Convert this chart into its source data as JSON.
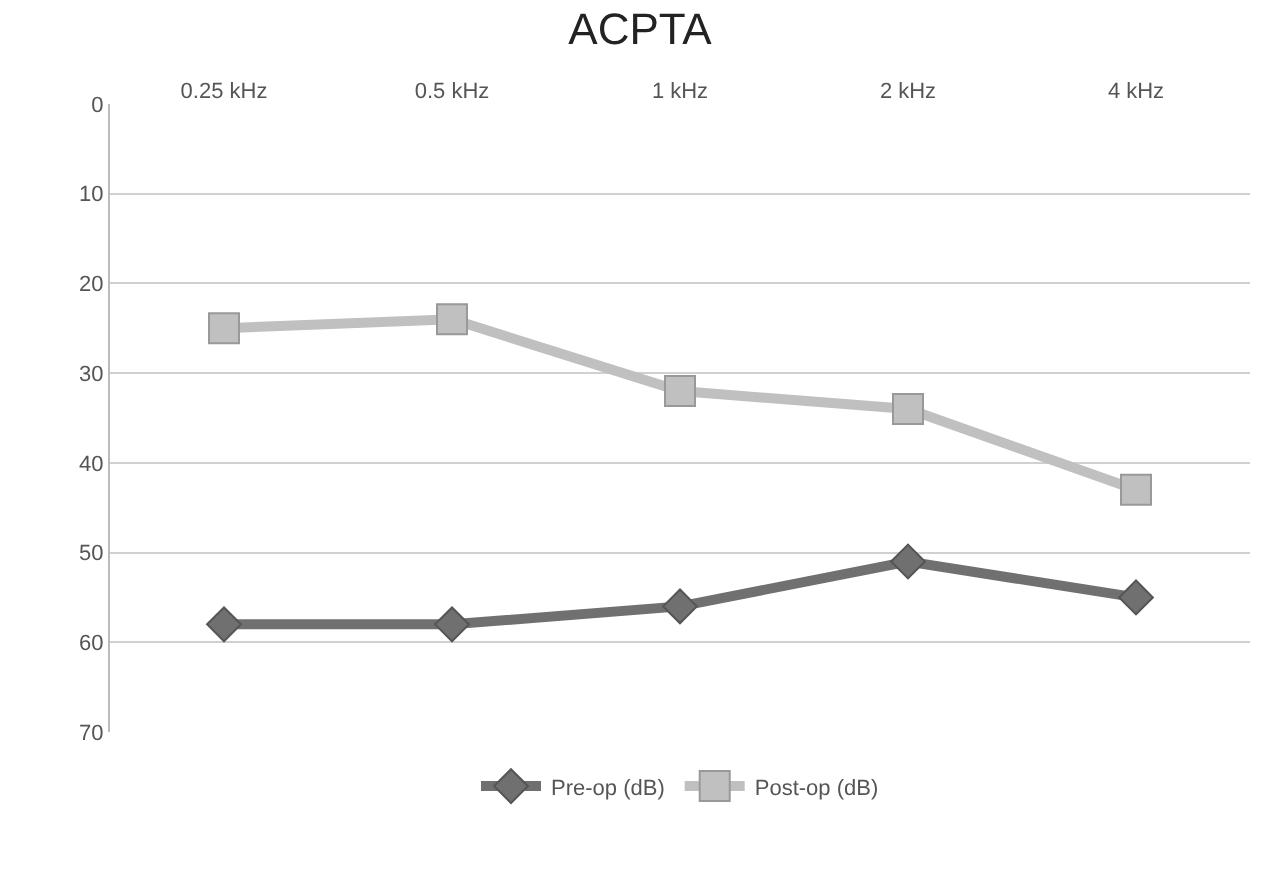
{
  "chart_data": {
    "type": "line",
    "title": "ACPTA",
    "categories": [
      "0.25 kHz",
      "0.5 kHz",
      "1 kHz",
      "2 kHz",
      "4 kHz"
    ],
    "series": [
      {
        "name": "Pre-op (dB)",
        "color": "#707070",
        "marker": "diamond",
        "values": [
          58,
          58,
          56,
          51,
          55
        ]
      },
      {
        "name": "Post-op (dB)",
        "color": "#c0c0c0",
        "marker": "square",
        "values": [
          25,
          24,
          32,
          34,
          43
        ]
      }
    ],
    "ylim": [
      70,
      0
    ],
    "yticks": [
      0,
      10,
      20,
      30,
      40,
      50,
      60,
      70
    ],
    "grid": "y",
    "legend": "bottom"
  }
}
